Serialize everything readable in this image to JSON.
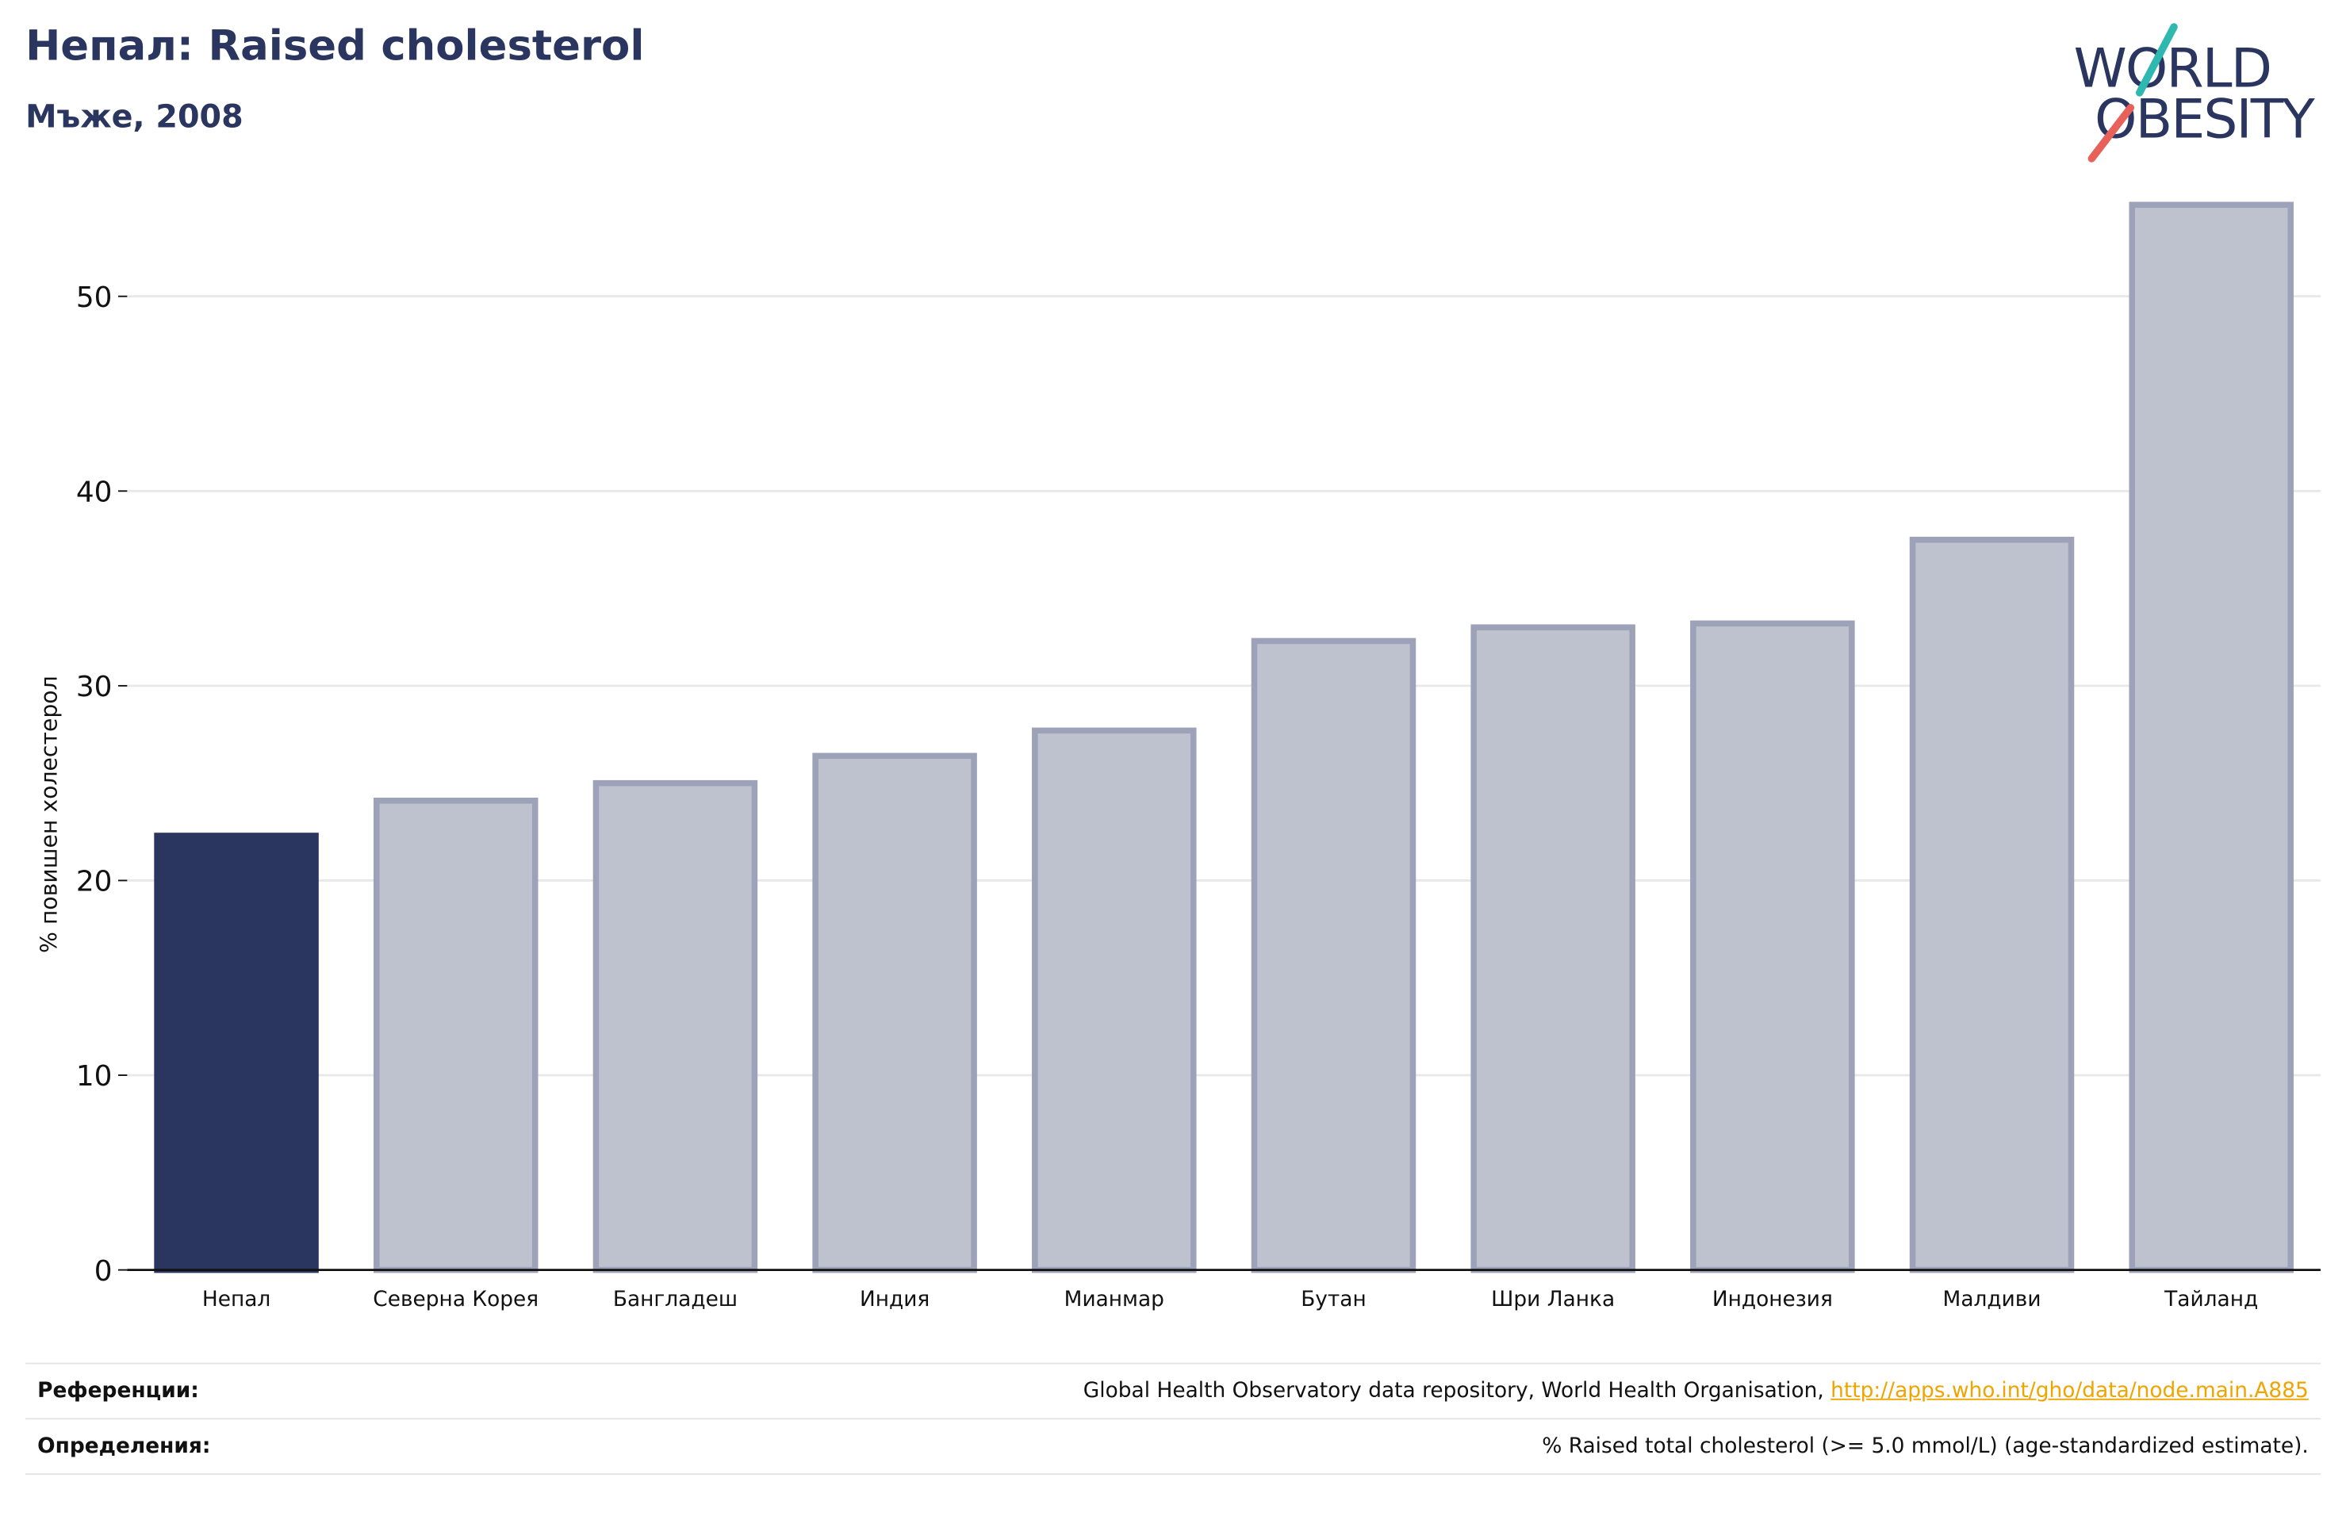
{
  "header": {
    "title": "Непал: Raised cholesterol",
    "subtitle": "Мъже, 2008"
  },
  "logo": {
    "line1": "WORLD",
    "line2": "OBESITY",
    "accent_teal": "#2fb8b0",
    "accent_red": "#e8605a",
    "text_color": "#2a3560"
  },
  "colors": {
    "highlight_bar": "#2a3560",
    "other_bar_fill": "#bec1ce",
    "other_bar_stroke": "#9da2b8",
    "grid": "#e8e8e8",
    "axis": "#111111"
  },
  "chart_data": {
    "type": "bar",
    "ylabel": "% повишен холестерол",
    "ylim": [
      0,
      56
    ],
    "yticks": [
      0,
      10,
      20,
      30,
      40,
      50
    ],
    "grid": true,
    "categories": [
      "Непал",
      "Северна Корея",
      "Бангладеш",
      "Индия",
      "Мианмар",
      "Бутан",
      "Шри Ланка",
      "Индонезия",
      "Малдиви",
      "Тайланд"
    ],
    "values": [
      22.3,
      24.1,
      25.0,
      26.4,
      27.7,
      32.3,
      33.0,
      33.2,
      37.5,
      54.7
    ],
    "highlight": "Непал"
  },
  "footer": {
    "references_label": "Референции:",
    "references_text": "Global Health Observatory data repository, World Health Organisation, ",
    "references_link": "http://apps.who.int/gho/data/node.main.A885",
    "definitions_label": "Определения:",
    "definitions_text": "% Raised total cholesterol (>= 5.0 mmol/L) (age-standardized estimate)."
  }
}
